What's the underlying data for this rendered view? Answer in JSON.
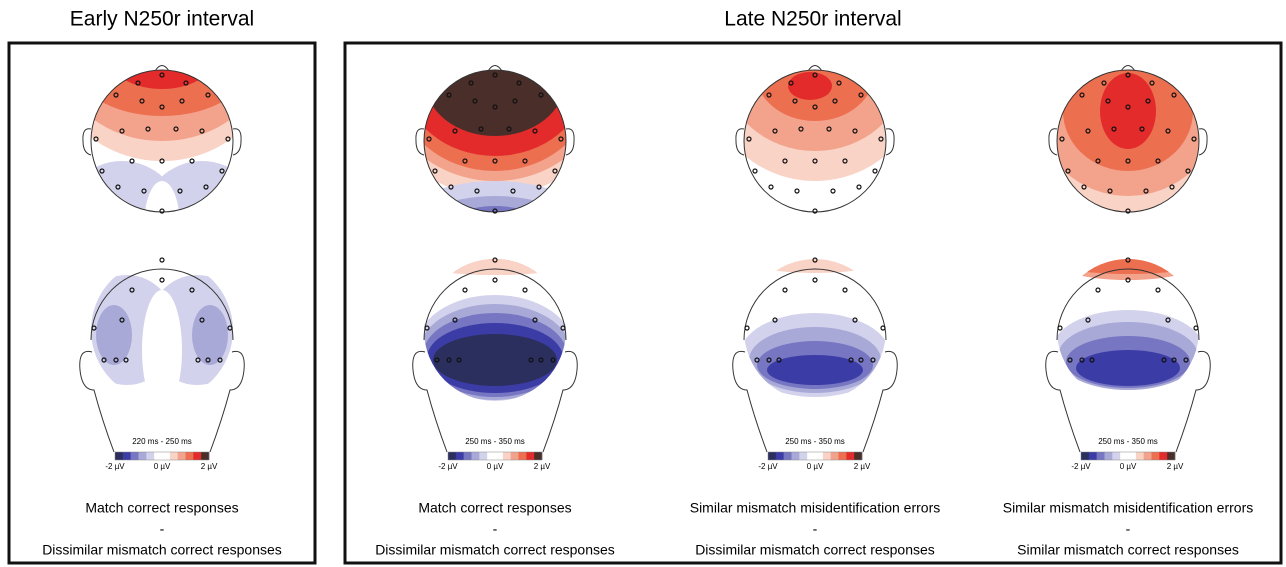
{
  "groups": [
    {
      "title": "Early N250r interval",
      "panels": [
        {
          "time": "220 ms - 250 ms",
          "scale": [
            "-2 µV",
            "0 µV",
            "2 µV"
          ],
          "caption": [
            "Match correct responses",
            "-",
            "Dissimilar mismatch correct responses"
          ]
        }
      ]
    },
    {
      "title": "Late N250r interval",
      "panels": [
        {
          "time": "250 ms - 350 ms",
          "scale": [
            "-2 µV",
            "0 µV",
            "2 µV"
          ],
          "caption": [
            "Match correct responses",
            "-",
            "Dissimilar mismatch correct responses"
          ]
        },
        {
          "time": "250 ms - 350 ms",
          "scale": [
            "-2 µV",
            "0 µV",
            "2 µV"
          ],
          "caption": [
            "Similar mismatch misidentification errors",
            "-",
            "Dissimilar mismatch correct responses"
          ]
        },
        {
          "time": "250 ms - 350 ms",
          "scale": [
            "-2 µV",
            "0 µV",
            "2 µV"
          ],
          "caption": [
            "Similar mismatch misidentification errors",
            "-",
            "Similar mismatch correct responses"
          ]
        }
      ]
    }
  ]
}
